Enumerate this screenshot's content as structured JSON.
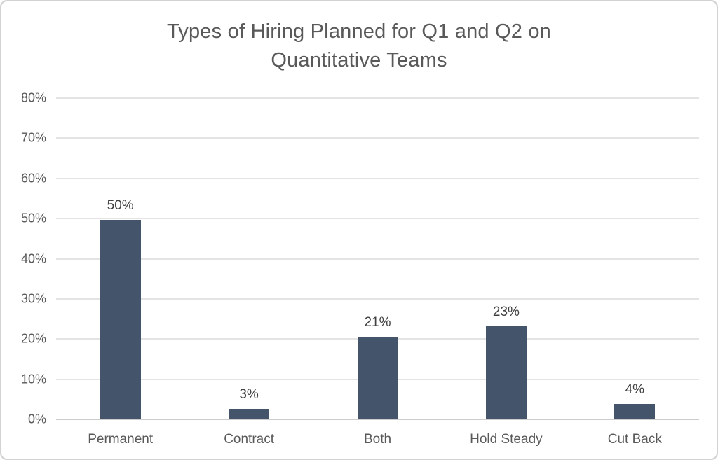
{
  "window": {
    "background": "#ffffff",
    "border_color": "#d2d2d2"
  },
  "title_lines": [
    "Types of Hiring Planned for Q1 and Q2 on",
    "Quantitative Teams"
  ],
  "chart_data": {
    "type": "bar",
    "title": "Types of Hiring Planned for Q1 and Q2 on Quantitative Teams",
    "categories": [
      "Permanent",
      "Contract",
      "Both",
      "Hold Steady",
      "Cut Back"
    ],
    "values": [
      49.6,
      2.6,
      20.6,
      23.2,
      3.9
    ],
    "value_labels": [
      "50%",
      "3%",
      "21%",
      "23%",
      "4%"
    ],
    "y_tick_values": [
      0,
      10,
      20,
      30,
      40,
      50,
      60,
      70,
      80
    ],
    "y_tick_labels": [
      "0%",
      "10%",
      "20%",
      "30%",
      "40%",
      "50%",
      "60%",
      "70%",
      "80%"
    ],
    "ylim": [
      0,
      80
    ],
    "xlabel": "",
    "ylabel": "",
    "grid": true,
    "legend_position": "none",
    "bar_color": "#44546A",
    "gridline_color": "#e4e4e4",
    "axis_line_color": "#cccccc",
    "title_color": "#595959",
    "tick_label_color": "#595959",
    "value_label_color": "#404040"
  }
}
